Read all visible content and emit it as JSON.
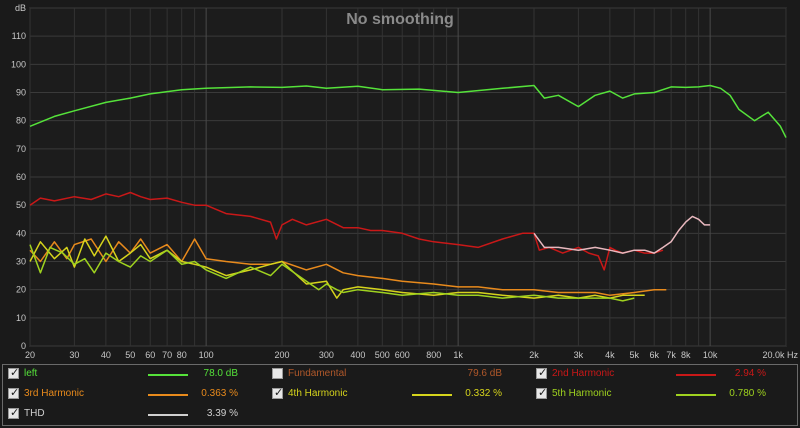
{
  "chart_data": {
    "type": "line",
    "title": "No smoothing",
    "ylabel": "dB",
    "xlabel": "",
    "x_unit": "Hz",
    "x_scale": "log",
    "xlim": [
      20,
      20000
    ],
    "ylim": [
      0,
      120
    ],
    "grid": true,
    "legend_position": "bottom",
    "y_ticks": [
      0,
      10,
      20,
      30,
      40,
      50,
      60,
      70,
      80,
      90,
      100,
      110,
      120
    ],
    "y_tick_labels": [
      "0",
      "10",
      "20",
      "30",
      "40",
      "50",
      "60",
      "70",
      "80",
      "90",
      "100",
      "110",
      "dB"
    ],
    "x_ticks": [
      20,
      30,
      40,
      50,
      60,
      70,
      80,
      100,
      200,
      300,
      400,
      500,
      600,
      800,
      1000,
      2000,
      3000,
      4000,
      5000,
      6000,
      7000,
      8000,
      10000,
      20000
    ],
    "x_tick_labels": [
      "20",
      "30",
      "40",
      "50",
      "60",
      "70",
      "80",
      "100",
      "200",
      "300",
      "400",
      "500",
      "600",
      "800",
      "1k",
      "2k",
      "3k",
      "4k",
      "5k",
      "6k",
      "7k",
      "8k",
      "10k",
      "20.0k Hz"
    ],
    "series": [
      {
        "name": "left",
        "color": "#55e23a",
        "x": [
          20,
          25,
          30,
          40,
          50,
          60,
          80,
          100,
          150,
          200,
          250,
          300,
          400,
          500,
          700,
          1000,
          1500,
          2000,
          2200,
          2500,
          3000,
          3500,
          4000,
          4500,
          5000,
          6000,
          7000,
          8000,
          9000,
          10000,
          11000,
          12000,
          13000,
          15000,
          17000,
          19000,
          20000
        ],
        "y": [
          78,
          81.5,
          83.5,
          86.5,
          88,
          89.5,
          91,
          91.5,
          92,
          91.8,
          92.3,
          91.5,
          92.2,
          91,
          91.2,
          90,
          91.5,
          92.5,
          88,
          89,
          85,
          89,
          90.5,
          88,
          89.5,
          90,
          92,
          91.8,
          92,
          92.5,
          91.5,
          89,
          84,
          80,
          83,
          78,
          74
        ]
      },
      {
        "name": "2nd Harmonic",
        "color": "#c91818",
        "x": [
          20,
          22,
          25,
          30,
          35,
          40,
          45,
          50,
          55,
          60,
          70,
          80,
          90,
          100,
          120,
          150,
          180,
          190,
          200,
          220,
          250,
          300,
          350,
          400,
          450,
          500,
          600,
          700,
          800,
          1000,
          1200,
          1500,
          1800,
          2000,
          2100,
          2300,
          2600,
          3000,
          3300,
          3600,
          3800,
          4000,
          4200,
          4500,
          5000,
          5500,
          6000,
          6500
        ],
        "y": [
          50,
          52.5,
          51.5,
          53,
          52,
          54,
          53,
          54.5,
          53,
          52,
          52.5,
          51,
          50,
          50,
          47,
          46,
          44,
          38,
          43,
          45,
          43,
          45,
          42,
          42,
          41,
          41,
          40,
          38,
          37,
          36,
          35,
          38,
          40,
          40,
          34,
          35,
          33,
          35,
          33,
          32,
          27,
          35,
          34,
          33,
          34,
          33,
          33,
          34
        ]
      },
      {
        "name": "3rd Harmonic",
        "color": "#e88a1c",
        "x": [
          20,
          22,
          25,
          28,
          30,
          35,
          40,
          45,
          50,
          55,
          60,
          70,
          80,
          90,
          100,
          120,
          150,
          180,
          200,
          250,
          300,
          350,
          400,
          500,
          600,
          800,
          1000,
          1200,
          1500,
          2000,
          2500,
          3000,
          3500,
          4000,
          5000,
          6000,
          6700
        ],
        "y": [
          34,
          30,
          37,
          31,
          36,
          38,
          30,
          37,
          33,
          38,
          33,
          36,
          30,
          38,
          31,
          30,
          29,
          29,
          30,
          27,
          29,
          26,
          25,
          24,
          23,
          22,
          21,
          21,
          20,
          20,
          19,
          19,
          19,
          18,
          19,
          20,
          20
        ]
      },
      {
        "name": "4th Harmonic",
        "color": "#d6d41c",
        "x": [
          20,
          22,
          25,
          28,
          30,
          33,
          36,
          40,
          45,
          50,
          55,
          60,
          70,
          80,
          90,
          100,
          120,
          150,
          180,
          200,
          250,
          300,
          330,
          350,
          400,
          500,
          600,
          800,
          1000,
          1200,
          1500,
          2000,
          2500,
          3000,
          3500,
          4000,
          4500,
          5000,
          5500
        ],
        "y": [
          30,
          37,
          31,
          35,
          28,
          38,
          32,
          39,
          30,
          33,
          36,
          31,
          34,
          30,
          29,
          28,
          25,
          27,
          29,
          30,
          22,
          23,
          17,
          20,
          21,
          20,
          19,
          18,
          19,
          19,
          18,
          17,
          18,
          17,
          18,
          17,
          18,
          18,
          18
        ]
      },
      {
        "name": "5th Harmonic",
        "color": "#9fd21f",
        "x": [
          20,
          22,
          24,
          27,
          30,
          33,
          36,
          40,
          45,
          50,
          55,
          60,
          70,
          80,
          90,
          100,
          120,
          150,
          180,
          200,
          250,
          280,
          300,
          330,
          350,
          400,
          500,
          600,
          800,
          1000,
          1200,
          1500,
          2000,
          2500,
          3000,
          3500,
          4000,
          4500,
          5000
        ],
        "y": [
          36,
          26,
          35,
          33,
          29,
          31,
          26,
          33,
          30,
          28,
          32,
          30,
          34,
          29,
          30,
          27,
          24,
          28,
          25,
          29,
          23,
          20,
          22,
          20,
          19,
          20,
          19,
          18,
          19,
          18,
          18,
          17,
          18,
          17,
          17,
          17,
          17,
          16,
          17
        ]
      },
      {
        "name": "THD",
        "color": "#e8b8be",
        "x": [
          2000,
          2200,
          2500,
          3000,
          3500,
          4000,
          4500,
          5000,
          5500,
          6000,
          6500,
          7000,
          7500,
          8000,
          8500,
          9000,
          9500,
          10000
        ],
        "y": [
          40,
          35,
          35,
          34,
          35,
          34,
          33,
          34,
          34,
          33,
          35,
          37,
          41,
          44,
          46,
          45,
          43,
          43
        ]
      }
    ]
  },
  "legend": {
    "items": [
      {
        "label": "left",
        "value": "78.0 dB",
        "checked": true,
        "text_color": "#55e23a",
        "swatch": "#55e23a"
      },
      {
        "label": "Fundamental",
        "value": "79.6 dB",
        "checked": false,
        "text_color": "#b0582a",
        "swatch": ""
      },
      {
        "label": "2nd Harmonic",
        "value": "2.94 %",
        "checked": true,
        "text_color": "#c91818",
        "swatch": "#c91818"
      },
      {
        "label": "3rd Harmonic",
        "value": "0.363 %",
        "checked": true,
        "text_color": "#e88a1c",
        "swatch": "#e88a1c"
      },
      {
        "label": "4th Harmonic",
        "value": "0.332 %",
        "checked": true,
        "text_color": "#d6d41c",
        "swatch": "#d6d41c"
      },
      {
        "label": "5th Harmonic",
        "value": "0.780 %",
        "checked": true,
        "text_color": "#9fd21f",
        "swatch": "#9fd21f"
      },
      {
        "label": "THD",
        "value": "3.39 %",
        "checked": true,
        "text_color": "#d0d0d0",
        "swatch": "#d0d0d0"
      }
    ]
  }
}
